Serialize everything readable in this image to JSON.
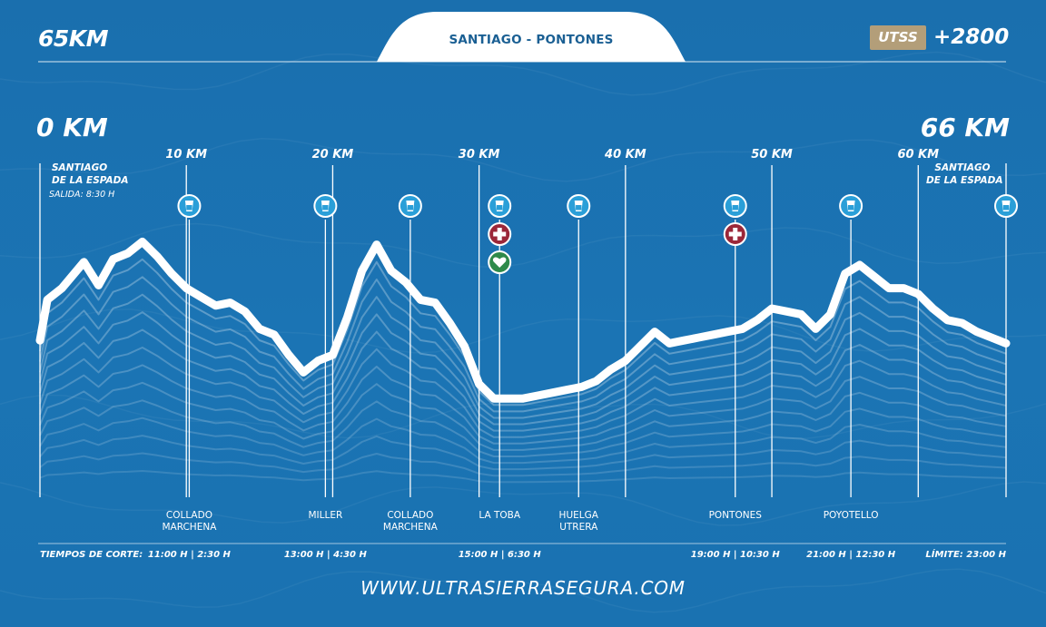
{
  "header": {
    "distance": "65KM",
    "route": "SANTIAGO - PONTONES",
    "badge": "UTSS",
    "elevation_gain": "+2800"
  },
  "website": "WWW.ULTRASIERRASEGURA.COM",
  "colors": {
    "background": "#1a71b0",
    "profile_line": "#ffffff",
    "badge": "#b39e79",
    "aid_station": "#2a9fd8",
    "medical": "#9b2739",
    "health": "#2e8a4a"
  },
  "chart_data": {
    "type": "line",
    "x_range_km": [
      0,
      66
    ],
    "start_label": "0 KM",
    "end_label": "66 KM",
    "km_ticks": [
      {
        "km": 10,
        "label": "10 KM"
      },
      {
        "km": 20,
        "label": "20 KM"
      },
      {
        "km": 30,
        "label": "30 KM"
      },
      {
        "km": 40,
        "label": "40 KM"
      },
      {
        "km": 50,
        "label": "50 KM"
      },
      {
        "km": 60,
        "label": "60 KM"
      }
    ],
    "profile_relative": [
      [
        0,
        0.54
      ],
      [
        0.5,
        0.68
      ],
      [
        1.5,
        0.72
      ],
      [
        3,
        0.81
      ],
      [
        4,
        0.73
      ],
      [
        5,
        0.82
      ],
      [
        6,
        0.84
      ],
      [
        7,
        0.88
      ],
      [
        8,
        0.83
      ],
      [
        9,
        0.77
      ],
      [
        10,
        0.72
      ],
      [
        11,
        0.69
      ],
      [
        12,
        0.66
      ],
      [
        13,
        0.67
      ],
      [
        14,
        0.64
      ],
      [
        15,
        0.58
      ],
      [
        16,
        0.56
      ],
      [
        17,
        0.49
      ],
      [
        18,
        0.43
      ],
      [
        19,
        0.47
      ],
      [
        20,
        0.49
      ],
      [
        21,
        0.62
      ],
      [
        22,
        0.78
      ],
      [
        23,
        0.87
      ],
      [
        24,
        0.78
      ],
      [
        25,
        0.74
      ],
      [
        26,
        0.68
      ],
      [
        27,
        0.67
      ],
      [
        28,
        0.6
      ],
      [
        29,
        0.52
      ],
      [
        30,
        0.39
      ],
      [
        31,
        0.34
      ],
      [
        32,
        0.34
      ],
      [
        33,
        0.34
      ],
      [
        34,
        0.35
      ],
      [
        35,
        0.36
      ],
      [
        36,
        0.37
      ],
      [
        37,
        0.38
      ],
      [
        38,
        0.4
      ],
      [
        39,
        0.44
      ],
      [
        40,
        0.47
      ],
      [
        41,
        0.52
      ],
      [
        42,
        0.57
      ],
      [
        43,
        0.53
      ],
      [
        44,
        0.54
      ],
      [
        45,
        0.55
      ],
      [
        46,
        0.56
      ],
      [
        47,
        0.57
      ],
      [
        48,
        0.58
      ],
      [
        49,
        0.61
      ],
      [
        50,
        0.65
      ],
      [
        51,
        0.64
      ],
      [
        52,
        0.63
      ],
      [
        53,
        0.58
      ],
      [
        54,
        0.63
      ],
      [
        55,
        0.77
      ],
      [
        56,
        0.8
      ],
      [
        57,
        0.76
      ],
      [
        58,
        0.72
      ],
      [
        59,
        0.72
      ],
      [
        60,
        0.7
      ],
      [
        61,
        0.65
      ],
      [
        62,
        0.61
      ],
      [
        63,
        0.6
      ],
      [
        64,
        0.57
      ],
      [
        65,
        0.55
      ],
      [
        66,
        0.53
      ]
    ],
    "locations": [
      {
        "km": 0,
        "name_lines": [
          "SANTIAGO",
          "DE LA ESPADA"
        ],
        "time": "SALIDA: 8:30 H",
        "icons": []
      },
      {
        "km": 10.2,
        "name_lines": [
          "COLLADO",
          "MARCHENA"
        ],
        "cutoff": "11:00 H | 2:30 H",
        "icons": [
          "water"
        ]
      },
      {
        "km": 19.5,
        "name_lines": [
          "MILLER"
        ],
        "cutoff": "13:00 H | 4:30 H",
        "icons": [
          "water"
        ]
      },
      {
        "km": 25.3,
        "name_lines": [
          "COLLADO",
          "MARCHENA"
        ],
        "icons": [
          "water"
        ]
      },
      {
        "km": 31.4,
        "name_lines": [
          "LA TOBA"
        ],
        "cutoff": "15:00 H | 6:30 H",
        "icons": [
          "water",
          "medical",
          "health"
        ]
      },
      {
        "km": 36.8,
        "name_lines": [
          "HUELGA",
          "UTRERA"
        ],
        "icons": [
          "water"
        ]
      },
      {
        "km": 47.5,
        "name_lines": [
          "PONTONES"
        ],
        "cutoff": "19:00 H | 10:30 H",
        "icons": [
          "water",
          "medical"
        ]
      },
      {
        "km": 55.4,
        "name_lines": [
          "POYOTELLO"
        ],
        "cutoff": "21:00 H | 12:30 H",
        "icons": [
          "water"
        ]
      },
      {
        "km": 66,
        "name_lines": [
          "SANTIAGO",
          "DE LA ESPADA"
        ],
        "icons": [
          "water"
        ]
      }
    ],
    "cutoff_title": "TIEMPOS DE CORTE:",
    "limit": "LÍMITE: 23:00 H"
  }
}
